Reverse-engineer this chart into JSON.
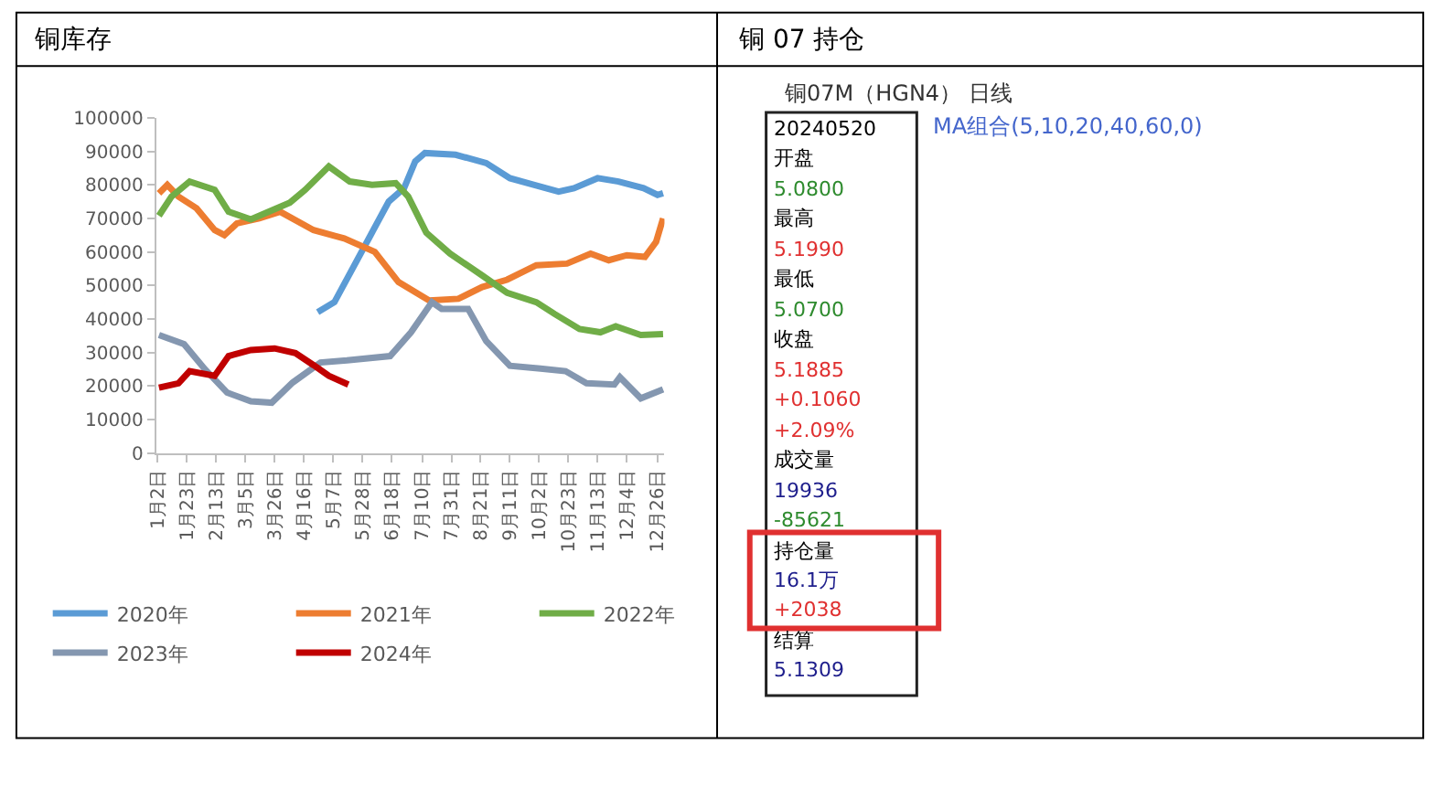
{
  "chart_data": [
    {
      "type": "line",
      "title": "铜库存",
      "legend": "bottom",
      "marker": "none",
      "line_style": "solid",
      "xlim": [
        "--01-01",
        "--12-31"
      ],
      "ylim": [
        0,
        100000
      ],
      "yticks": [
        0,
        10000,
        20000,
        30000,
        40000,
        50000,
        60000,
        70000,
        80000,
        90000,
        100000
      ],
      "xticks": [
        {
          "value": "--01-02",
          "label": "1月2日"
        },
        {
          "value": "--01-23",
          "label": "1月23日"
        },
        {
          "value": "--02-13",
          "label": "2月13日"
        },
        {
          "value": "--03-05",
          "label": "3月5日"
        },
        {
          "value": "--03-26",
          "label": "3月26日"
        },
        {
          "value": "--04-16",
          "label": "4月16日"
        },
        {
          "value": "--05-07",
          "label": "5月7日"
        },
        {
          "value": "--05-28",
          "label": "5月28日"
        },
        {
          "value": "--06-18",
          "label": "6月18日"
        },
        {
          "value": "--07-10",
          "label": "7月10日"
        },
        {
          "value": "--07-31",
          "label": "7月31日"
        },
        {
          "value": "--08-21",
          "label": "8月21日"
        },
        {
          "value": "--09-11",
          "label": "9月11日"
        },
        {
          "value": "--10-02",
          "label": "10月2日"
        },
        {
          "value": "--10-23",
          "label": "10月23日"
        },
        {
          "value": "--11-13",
          "label": "11月13日"
        },
        {
          "value": "--12-04",
          "label": "12月4日"
        },
        {
          "value": "--12-26",
          "label": "12月26日"
        }
      ],
      "series": [
        {
          "name": "2020年",
          "color": "#5b9bd5",
          "x": [
            "--04-26",
            "--05-08",
            "--05-21",
            "--06-03",
            "--06-16",
            "--06-27",
            "--07-05",
            "--07-12",
            "--08-03",
            "--08-25",
            "--09-11",
            "--09-28",
            "--10-16",
            "--10-27",
            "--11-13",
            "--11-28",
            "--12-16",
            "--12-26",
            "--12-30"
          ],
          "values": [
            42000,
            45000,
            55000,
            65000,
            75000,
            79000,
            87000,
            89500,
            89000,
            86500,
            82000,
            80000,
            78000,
            79000,
            82000,
            81000,
            79000,
            77000,
            77500
          ]
        },
        {
          "name": "2021年",
          "color": "#ed7d31",
          "x": [
            "--01-03",
            "--01-09",
            "--01-17",
            "--01-30",
            "--02-12",
            "--02-19",
            "--02-28",
            "--03-15",
            "--03-30",
            "--04-23",
            "--05-15",
            "--06-06",
            "--06-23",
            "--07-15",
            "--08-05",
            "--08-22",
            "--09-09",
            "--09-30",
            "--10-22",
            "--11-08",
            "--11-21",
            "--12-04",
            "--12-17",
            "--12-25",
            "--12-30"
          ],
          "values": [
            77500,
            80000,
            76500,
            73000,
            66500,
            65000,
            68500,
            70000,
            72000,
            66500,
            64000,
            60000,
            51000,
            45500,
            46000,
            49500,
            51700,
            56000,
            56500,
            59500,
            57500,
            59000,
            58500,
            63000,
            70000
          ]
        },
        {
          "name": "2022年",
          "color": "#70ad47",
          "x": [
            "--01-03",
            "--01-12",
            "--01-25",
            "--02-12",
            "--02-22",
            "--03-09",
            "--03-22",
            "--04-06",
            "--04-17",
            "--05-04",
            "--05-19",
            "--06-04",
            "--06-21",
            "--06-30",
            "--07-13",
            "--07-30",
            "--08-22",
            "--09-09",
            "--09-30",
            "--10-13",
            "--10-31",
            "--11-15",
            "--11-26",
            "--12-14",
            "--12-30"
          ],
          "values": [
            70800,
            76500,
            81000,
            78500,
            72000,
            69700,
            72000,
            74700,
            78500,
            85500,
            81000,
            80000,
            80500,
            76500,
            65700,
            59500,
            53000,
            47800,
            45000,
            41500,
            37000,
            36000,
            37800,
            35200,
            35500
          ]
        },
        {
          "name": "2023年",
          "color": "#8497b0",
          "x": [
            "--01-03",
            "--01-21",
            "--02-05",
            "--02-21",
            "--03-09",
            "--03-24",
            "--04-08",
            "--04-28",
            "--05-17",
            "--06-17",
            "--07-02",
            "--07-17",
            "--07-24",
            "--08-12",
            "--08-25",
            "--09-11",
            "--10-03",
            "--10-21",
            "--11-05",
            "--11-25",
            "--11-29",
            "--12-14",
            "--12-30"
          ],
          "values": [
            35200,
            32500,
            25000,
            18000,
            15400,
            15000,
            21000,
            27000,
            27600,
            28900,
            36000,
            45000,
            43000,
            43000,
            33400,
            26000,
            25200,
            24400,
            20800,
            20400,
            22600,
            16300,
            19000
          ]
        },
        {
          "name": "2024年",
          "color": "#c00000",
          "x": [
            "--01-03",
            "--01-17",
            "--01-25",
            "--02-12",
            "--02-22",
            "--03-09",
            "--03-26",
            "--04-10",
            "--04-23",
            "--05-04",
            "--05-18"
          ],
          "values": [
            19500,
            20800,
            24400,
            23000,
            28900,
            30700,
            31200,
            29800,
            26200,
            23000,
            20400
          ]
        }
      ]
    },
    {
      "type": "other",
      "title": "铜 07 持仓",
      "annotations": [
        "铜07M（HGN4） 日线",
        "MA组合(5,10,20,40,60,0)",
        "20240520",
        "开盘",
        "5.0800",
        "最高",
        "5.1990",
        "最低",
        "5.0700",
        "收盘",
        "5.1885",
        "+0.1060",
        "+2.09%",
        "成交量",
        "19936",
        "-85621",
        "持仓量",
        "16.1万",
        "+2038",
        "结算",
        "5.1309"
      ]
    }
  ]
}
